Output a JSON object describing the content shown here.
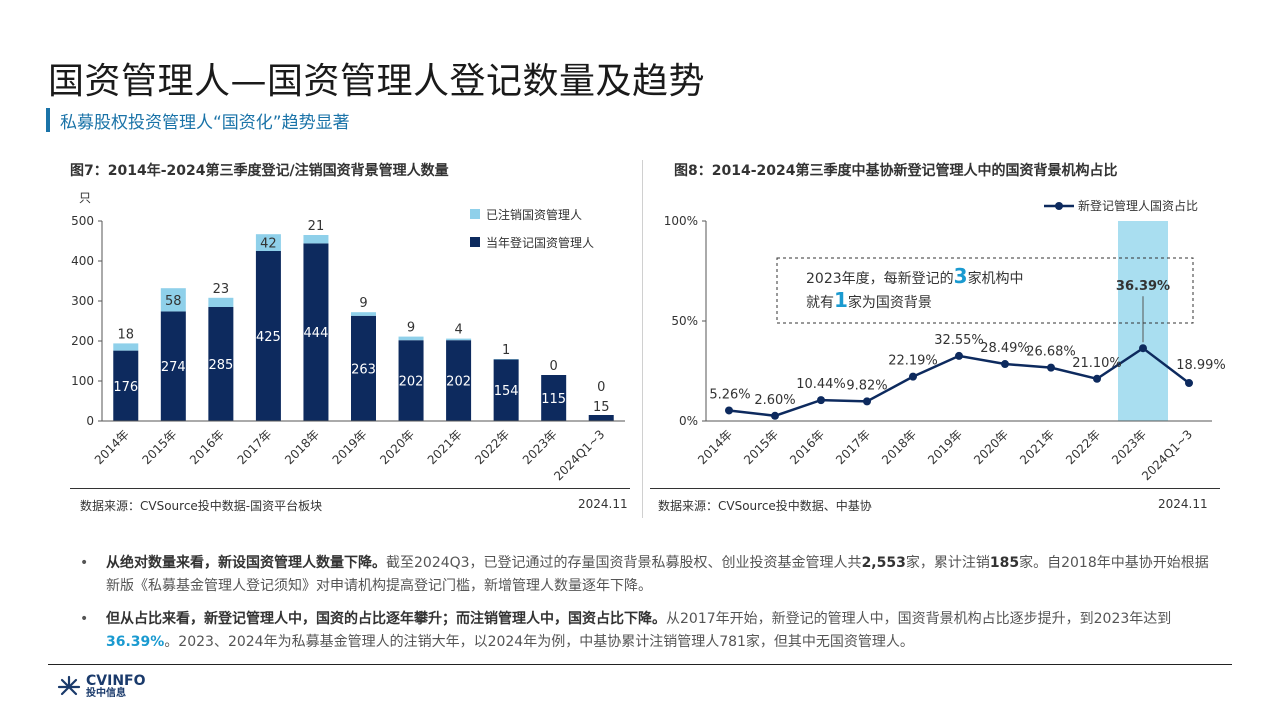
{
  "page": {
    "title": "国资管理人—国资管理人登记数量及趋势",
    "subtitle": "私募股权投资管理人“国资化”趋势显著"
  },
  "fig7": {
    "title": "图7：2014年-2024第三季度登记/注销国资背景管理人数量",
    "unit": "只",
    "legend_cancelled": "已注销国资管理人",
    "legend_registered": "当年登记国资管理人",
    "source": "数据来源：CVSource投中数据-国资平台板块",
    "date": "2024.11"
  },
  "fig8": {
    "title": "图8：2014-2024第三季度中基协新登记管理人中的国资背景机构占比",
    "legend": "新登记管理人国资占比",
    "annotation_line1_a": "2023年度，每新登记的",
    "annotation_line1_num": "3",
    "annotation_line1_b": "家机构中",
    "annotation_line2_a": "就有",
    "annotation_line2_num": "1",
    "annotation_line2_b": "家为国资背景",
    "source": "数据来源：CVSource投中数据、中基协",
    "date": "2024.11"
  },
  "chart_data": [
    {
      "type": "bar",
      "stacked": true,
      "categories": [
        "2014年",
        "2015年",
        "2016年",
        "2017年",
        "2018年",
        "2019年",
        "2020年",
        "2021年",
        "2022年",
        "2023年",
        "2024Q1~3"
      ],
      "series": [
        {
          "name": "当年登记国资管理人",
          "values": [
            176,
            274,
            285,
            425,
            444,
            263,
            202,
            202,
            154,
            115,
            15
          ],
          "color": "#0d2a5e"
        },
        {
          "name": "已注销国资管理人",
          "values": [
            18,
            58,
            23,
            42,
            21,
            9,
            9,
            4,
            1,
            0,
            0
          ],
          "color": "#8fd0ea"
        }
      ],
      "ylabel": "只",
      "ylim": [
        0,
        500
      ],
      "yticks": [
        0,
        100,
        200,
        300,
        400,
        500
      ]
    },
    {
      "type": "line",
      "categories": [
        "2014年",
        "2015年",
        "2016年",
        "2017年",
        "2018年",
        "2019年",
        "2020年",
        "2021年",
        "2022年",
        "2023年",
        "2024Q1~3"
      ],
      "series": [
        {
          "name": "新登记管理人国资占比",
          "values": [
            5.26,
            2.6,
            10.44,
            9.82,
            22.19,
            32.55,
            28.49,
            26.68,
            21.1,
            36.39,
            18.99
          ],
          "labels": [
            "5.26%",
            "2.60%",
            "10.44%",
            "9.82%",
            "22.19%",
            "32.55%",
            "28.49%",
            "26.68%",
            "21.10%",
            "36.39%",
            "18.99%"
          ],
          "color": "#0d2a5e"
        }
      ],
      "ylim": [
        0,
        100
      ],
      "yticks": [
        "0%",
        "50%",
        "100%"
      ],
      "highlight_category": "2023年",
      "highlight_color": "#a9def0"
    }
  ],
  "bullets": [
    {
      "bold": "从绝对数量来看，新设国资管理人数量下降。",
      "t1": "截至2024Q3，已登记通过的存量国资背景私募股权、创业投资基金管理人共",
      "b1": "2,553",
      "t2": "家，累计注销",
      "b2": "185",
      "t3": "家。自2018年中基协开始根据新版《私募基金管理人登记须知》对申请机构提高登记门槛，新增管理人数量逐年下降。"
    },
    {
      "bold": "但从占比来看，新登记管理人中，国资的占比逐年攀升；而注销管理人中，国资占比下降。",
      "t1": "从2017年开始，新登记的管理人中，国资背景机构占比逐步提升，到2023年达到",
      "hl": "36.39%",
      "t2": "。2023、2024年为私募基金管理人的注销大年，以2024年为例，中基协累计注销管理人781家，但其中无国资管理人。"
    }
  ],
  "logo": {
    "line1": "CVINFO",
    "line2": "投中信息"
  }
}
